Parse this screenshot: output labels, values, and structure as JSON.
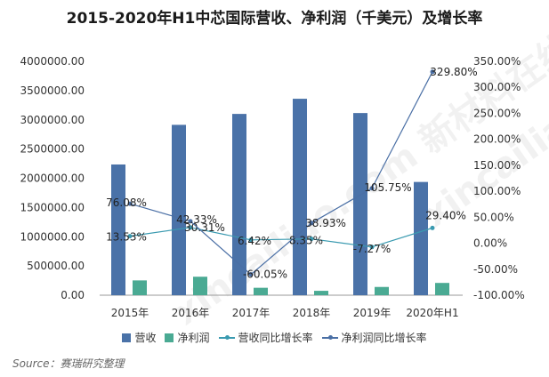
{
  "title": "2015-2020年H1中芯国际营收、净利润（千美元）及增长率",
  "source": "Source：赛瑞研究整理",
  "watermark": "xincailiao.com 新材料在线",
  "colors": {
    "revenue_bar": "#4a72a8",
    "profit_bar": "#4aaa93",
    "revenue_growth_line": "#3a9ab0",
    "profit_growth_line": "#4a6fa5"
  },
  "chart_data": {
    "type": "bar",
    "categories": [
      "2015年",
      "2016年",
      "2017年",
      "2018年",
      "2019年",
      "2020年H1"
    ],
    "series": [
      {
        "name": "营收",
        "type": "bar",
        "axis": "left",
        "values": [
          2236000,
          2914000,
          3101000,
          3360000,
          3116000,
          1937000
        ]
      },
      {
        "name": "净利润",
        "type": "bar",
        "axis": "left",
        "values": [
          253000,
          316000,
          127000,
          75000,
          141000,
          210000
        ]
      },
      {
        "name": "营收同比增长率",
        "type": "line",
        "axis": "right",
        "values": [
          13.53,
          30.31,
          6.42,
          8.35,
          -7.27,
          29.4
        ],
        "labels": [
          "13.53%",
          "30.31%",
          "6.42%",
          "8.35%",
          "-7.27%",
          "29.40%"
        ]
      },
      {
        "name": "净利润同比增长率",
        "type": "line",
        "axis": "right",
        "values": [
          76.08,
          42.33,
          -60.05,
          38.93,
          105.75,
          329.8
        ],
        "labels": [
          "76.08%",
          "42.33%",
          "-60.05%",
          "38.93%",
          "105.75%",
          "329.80%"
        ]
      }
    ],
    "y_left": {
      "ylim": [
        0,
        4000000
      ],
      "ticks": [
        "0.00",
        "500000.00",
        "1000000.00",
        "1500000.00",
        "2000000.00",
        "2500000.00",
        "3000000.00",
        "3500000.00",
        "4000000.00"
      ]
    },
    "y_right": {
      "ylim": [
        -100,
        350
      ],
      "ticks": [
        "-100.00%",
        "-50.00%",
        "0.00%",
        "50.00%",
        "100.00%",
        "150.00%",
        "200.00%",
        "250.00%",
        "300.00%",
        "350.00%"
      ]
    },
    "grid": false,
    "legend_position": "bottom"
  }
}
